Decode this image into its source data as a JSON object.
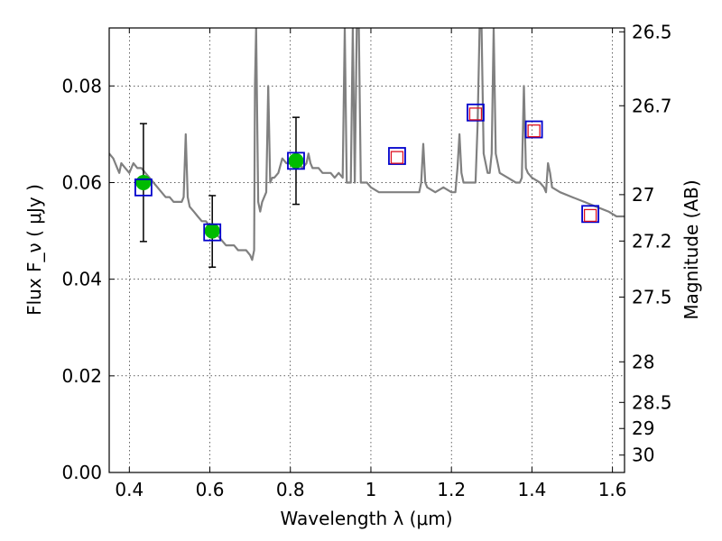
{
  "chart_data": {
    "type": "line",
    "title": "",
    "xlabel": "Wavelength  λ (μm)",
    "ylabel": "Flux  F_ν  ( μJy )",
    "ylabel_right": "Magnitude (AB)",
    "xlim": [
      0.35,
      1.63
    ],
    "ylim": [
      0.0,
      0.092
    ],
    "grid": true,
    "x_ticks": [
      0.4,
      0.6,
      0.8,
      1.0,
      1.2,
      1.4,
      1.6
    ],
    "x_tick_labels": [
      "0.4",
      "0.6",
      "0.8",
      "1",
      "1.2",
      "1.4",
      "1.6"
    ],
    "y_ticks": [
      0.0,
      0.02,
      0.04,
      0.06,
      0.08
    ],
    "y_tick_labels": [
      "0.00",
      "0.02",
      "0.04",
      "0.06",
      "0.08"
    ],
    "right_ticks": [
      {
        "label": "26.5",
        "flux": 0.0912
      },
      {
        "label": "26.7",
        "flux": 0.0759
      },
      {
        "label": "27",
        "flux": 0.0575
      },
      {
        "label": "27.2",
        "flux": 0.0479
      },
      {
        "label": "27.5",
        "flux": 0.0363
      },
      {
        "label": "28",
        "flux": 0.0229
      },
      {
        "label": "28.5",
        "flux": 0.0145
      },
      {
        "label": "29",
        "flux": 0.0091
      },
      {
        "label": "30",
        "flux": 0.0036
      }
    ],
    "series": [
      {
        "name": "model spectrum",
        "style": "line",
        "color": "#808080",
        "x": [
          0.35,
          0.36,
          0.37,
          0.375,
          0.38,
          0.39,
          0.4,
          0.41,
          0.42,
          0.43,
          0.44,
          0.45,
          0.46,
          0.47,
          0.48,
          0.49,
          0.5,
          0.51,
          0.52,
          0.53,
          0.535,
          0.54,
          0.545,
          0.55,
          0.56,
          0.57,
          0.58,
          0.59,
          0.6,
          0.61,
          0.62,
          0.63,
          0.64,
          0.65,
          0.66,
          0.67,
          0.68,
          0.69,
          0.7,
          0.705,
          0.71,
          0.712,
          0.715,
          0.718,
          0.72,
          0.725,
          0.73,
          0.74,
          0.745,
          0.75,
          0.755,
          0.76,
          0.77,
          0.78,
          0.79,
          0.8,
          0.81,
          0.82,
          0.83,
          0.84,
          0.845,
          0.85,
          0.855,
          0.86,
          0.87,
          0.88,
          0.89,
          0.9,
          0.91,
          0.92,
          0.93,
          0.935,
          0.94,
          0.945,
          0.95,
          0.955,
          0.96,
          0.965,
          0.97,
          0.975,
          0.98,
          0.99,
          1.0,
          1.02,
          1.04,
          1.06,
          1.08,
          1.1,
          1.12,
          1.125,
          1.13,
          1.135,
          1.14,
          1.16,
          1.18,
          1.2,
          1.21,
          1.215,
          1.22,
          1.225,
          1.23,
          1.25,
          1.26,
          1.265,
          1.27,
          1.275,
          1.28,
          1.285,
          1.29,
          1.295,
          1.3,
          1.305,
          1.31,
          1.32,
          1.34,
          1.36,
          1.37,
          1.375,
          1.38,
          1.385,
          1.39,
          1.4,
          1.42,
          1.43,
          1.435,
          1.44,
          1.445,
          1.45,
          1.47,
          1.5,
          1.53,
          1.56,
          1.59,
          1.61,
          1.63
        ],
        "y": [
          0.066,
          0.065,
          0.063,
          0.062,
          0.064,
          0.063,
          0.062,
          0.064,
          0.063,
          0.063,
          0.062,
          0.061,
          0.06,
          0.059,
          0.058,
          0.057,
          0.057,
          0.056,
          0.056,
          0.056,
          0.057,
          0.07,
          0.057,
          0.055,
          0.054,
          0.053,
          0.052,
          0.052,
          0.051,
          0.05,
          0.049,
          0.048,
          0.047,
          0.047,
          0.047,
          0.046,
          0.046,
          0.046,
          0.045,
          0.044,
          0.046,
          0.08,
          0.092,
          0.07,
          0.056,
          0.054,
          0.056,
          0.058,
          0.08,
          0.06,
          0.061,
          0.061,
          0.062,
          0.065,
          0.064,
          0.064,
          0.063,
          0.064,
          0.063,
          0.064,
          0.066,
          0.064,
          0.063,
          0.063,
          0.063,
          0.062,
          0.062,
          0.062,
          0.061,
          0.062,
          0.061,
          0.092,
          0.06,
          0.06,
          0.06,
          0.092,
          0.06,
          0.092,
          0.092,
          0.06,
          0.06,
          0.06,
          0.059,
          0.058,
          0.058,
          0.058,
          0.058,
          0.058,
          0.058,
          0.06,
          0.068,
          0.06,
          0.059,
          0.058,
          0.059,
          0.058,
          0.058,
          0.063,
          0.07,
          0.062,
          0.06,
          0.06,
          0.06,
          0.072,
          0.092,
          0.092,
          0.066,
          0.064,
          0.062,
          0.062,
          0.066,
          0.092,
          0.066,
          0.062,
          0.061,
          0.06,
          0.06,
          0.061,
          0.08,
          0.063,
          0.062,
          0.061,
          0.06,
          0.059,
          0.058,
          0.064,
          0.062,
          0.059,
          0.058,
          0.057,
          0.056,
          0.055,
          0.054,
          0.053,
          0.053
        ]
      },
      {
        "name": "measured fluxes",
        "style": "points",
        "color": "#00bb00",
        "x": [
          0.435,
          0.606,
          0.814
        ],
        "y": [
          0.06,
          0.05,
          0.0645
        ],
        "yerr_low": [
          0.0478,
          0.0425,
          0.0555
        ],
        "yerr_high": [
          0.0722,
          0.0573,
          0.0735
        ]
      },
      {
        "name": "model fluxes (blue squares)",
        "style": "squares",
        "color": "#0000cc",
        "x": [
          0.435,
          0.606,
          0.814,
          1.065,
          1.26,
          1.405,
          1.545
        ],
        "y": [
          0.059,
          0.0497,
          0.0645,
          0.0655,
          0.0745,
          0.071,
          0.0535
        ]
      },
      {
        "name": "model fluxes (red squares)",
        "style": "squares",
        "color": "#dd1122",
        "x": [
          1.065,
          1.26,
          1.405,
          1.545
        ],
        "y": [
          0.0652,
          0.0742,
          0.0707,
          0.0532
        ]
      }
    ]
  }
}
